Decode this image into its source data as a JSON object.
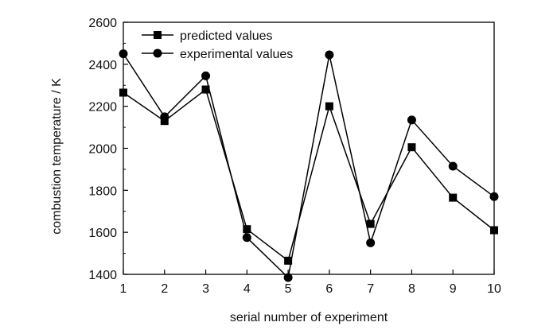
{
  "chart_data": {
    "type": "line",
    "xlabel": "serial number of experiment",
    "ylabel": "combustion temperature / K",
    "x": [
      1,
      2,
      3,
      4,
      5,
      6,
      7,
      8,
      9,
      10
    ],
    "xlim": [
      1,
      10
    ],
    "ylim": [
      1400,
      2600
    ],
    "xticks": [
      1,
      2,
      3,
      4,
      5,
      6,
      7,
      8,
      9,
      10
    ],
    "yticks": [
      1400,
      1600,
      1800,
      2000,
      2200,
      2400,
      2600
    ],
    "grid": false,
    "legend_position": "top-left",
    "series": [
      {
        "name": "predicted values",
        "marker": "square",
        "color": "#000000",
        "values": [
          2265,
          2130,
          2280,
          1615,
          1465,
          2200,
          1640,
          2005,
          1765,
          1610
        ]
      },
      {
        "name": "experimental values",
        "marker": "circle",
        "color": "#000000",
        "values": [
          2450,
          2150,
          2345,
          1575,
          1385,
          2445,
          1550,
          2135,
          1915,
          1770
        ]
      }
    ]
  }
}
